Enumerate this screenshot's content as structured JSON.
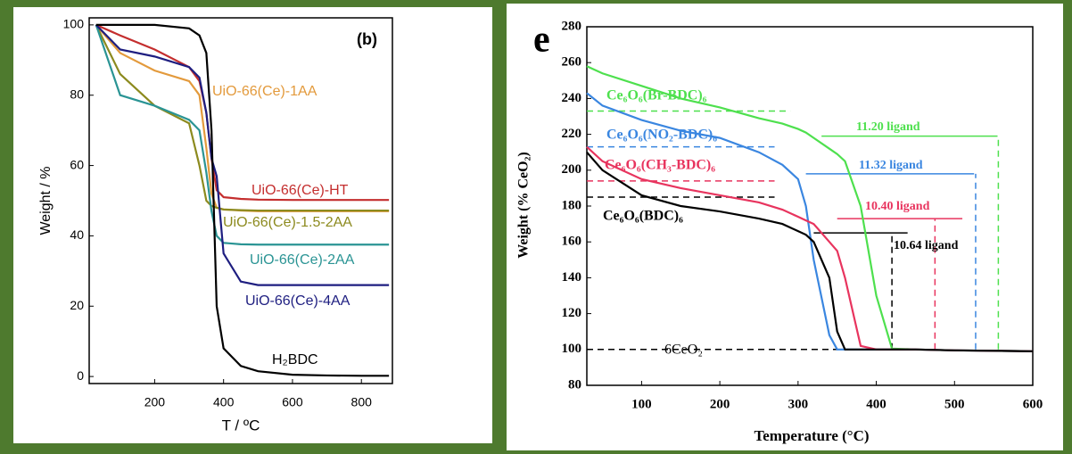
{
  "chart_data": [
    {
      "type": "line",
      "annotations": [
        "(b)"
      ],
      "xlabel": "T / ºC",
      "ylabel": "Weight / %",
      "xlim": [
        10,
        890
      ],
      "ylim": [
        -2,
        102
      ],
      "xticks": [
        200,
        400,
        600,
        800
      ],
      "yticks": [
        0,
        20,
        40,
        60,
        80,
        100
      ],
      "x": [
        30,
        100,
        200,
        300,
        330,
        350,
        365,
        380,
        400,
        450,
        500,
        600,
        700,
        800,
        880
      ],
      "series": [
        {
          "name": "UiO-66(Ce)-1AA",
          "color": "#e39a3c",
          "values": [
            100,
            92,
            87,
            84,
            80,
            65,
            52,
            48,
            47.5,
            47.2,
            47,
            47,
            47,
            47,
            47
          ]
        },
        {
          "name": "UiO-66(Ce)-HT",
          "color": "#c42e2e",
          "values": [
            100,
            97,
            93,
            88,
            84,
            75,
            62,
            53,
            51,
            50.5,
            50.3,
            50.2,
            50.2,
            50.2,
            50.2
          ]
        },
        {
          "name": "UiO-66(Ce)-1.5-2AA",
          "color": "#8c8a1e",
          "values": [
            100,
            86,
            77,
            72,
            60,
            50,
            48.5,
            48,
            47.5,
            47.3,
            47.2,
            47.2,
            47.2,
            47.2,
            47.2
          ]
        },
        {
          "name": "UiO-66(Ce)-2AA",
          "color": "#2a9494",
          "values": [
            100,
            80,
            77,
            73,
            70,
            58,
            47,
            40,
            38,
            37.6,
            37.5,
            37.5,
            37.5,
            37.5,
            37.5
          ]
        },
        {
          "name": "UiO-66(Ce)-4AA",
          "color": "#1e1e80",
          "values": [
            100,
            93,
            91,
            88,
            85,
            75,
            62,
            57,
            35,
            27,
            26,
            26,
            26,
            26,
            26
          ]
        },
        {
          "name": "H₂BDC",
          "color": "#000000",
          "values": [
            100,
            100,
            100,
            99,
            97,
            92,
            70,
            20,
            8,
            3,
            1.5,
            0.5,
            0.3,
            0.2,
            0.2
          ]
        }
      ]
    },
    {
      "type": "line",
      "annotations": [
        "e",
        "11.20 ligand",
        "11.32 ligand",
        "10.40 ligand",
        "10.64 ligand",
        "6CeO₂"
      ],
      "xlabel": "Temperature (°C)",
      "ylabel": "Weight (% CeO₂)",
      "xlim": [
        30,
        600
      ],
      "ylim": [
        80,
        280
      ],
      "xticks": [
        100,
        200,
        300,
        400,
        500,
        600
      ],
      "yticks": [
        80,
        100,
        120,
        140,
        160,
        180,
        200,
        220,
        240,
        260,
        280
      ],
      "x": [
        30,
        50,
        100,
        150,
        200,
        250,
        280,
        300,
        310,
        320,
        340,
        350,
        360,
        380,
        400,
        420,
        450,
        500,
        600
      ],
      "series": [
        {
          "name": "Ce₆O₆(Br-BDC)₆",
          "color": "#4ee04e",
          "values": [
            258,
            254,
            247,
            240,
            235,
            229,
            226,
            223,
            221,
            218,
            212,
            209,
            205,
            180,
            130,
            100.5,
            100,
            99.5,
            99
          ]
        },
        {
          "name": "Ce₆O₆(NO₂-BDC)₆",
          "color": "#3a86e0",
          "values": [
            243,
            236,
            228,
            222,
            218,
            210,
            203,
            195,
            180,
            150,
            108,
            100,
            100,
            100,
            100,
            100,
            100,
            99.5,
            99
          ]
        },
        {
          "name": "Ce₆O₆(CH₃-BDC)₆",
          "color": "#e8345e",
          "values": [
            213,
            205,
            195,
            190,
            186,
            182,
            178,
            174,
            172,
            170,
            160,
            155,
            140,
            102,
            100,
            100,
            100,
            99.5,
            99
          ]
        },
        {
          "name": "Ce₆O₆(BDC)₆",
          "color": "#000000",
          "values": [
            210,
            200,
            186,
            180,
            177,
            173,
            170,
            166,
            164,
            160,
            140,
            110,
            100,
            100,
            100,
            100,
            100,
            99.5,
            99
          ]
        }
      ],
      "reference_lines": [
        {
          "x": [
            30,
            290
          ],
          "y": [
            233,
            233
          ],
          "color": "#4ee04e",
          "dash": true
        },
        {
          "x": [
            30,
            270
          ],
          "y": [
            213,
            213
          ],
          "color": "#3a86e0",
          "dash": true
        },
        {
          "x": [
            30,
            270
          ],
          "y": [
            194,
            194
          ],
          "color": "#e8345e",
          "dash": true
        },
        {
          "x": [
            30,
            270
          ],
          "y": [
            185,
            185
          ],
          "color": "#000000",
          "dash": true
        },
        {
          "x": [
            30,
            440
          ],
          "y": [
            100,
            100
          ],
          "color": "#000000",
          "dash": true
        },
        {
          "x": [
            330,
            555
          ],
          "y": [
            219,
            219
          ],
          "color": "#4ee04e",
          "dash": false
        },
        {
          "x": [
            556,
            556
          ],
          "y": [
            100,
            219
          ],
          "color": "#4ee04e",
          "dash": true
        },
        {
          "x": [
            310,
            525
          ],
          "y": [
            198,
            198
          ],
          "color": "#3a86e0",
          "dash": false
        },
        {
          "x": [
            527,
            527
          ],
          "y": [
            100,
            198
          ],
          "color": "#3a86e0",
          "dash": true
        },
        {
          "x": [
            350,
            510
          ],
          "y": [
            173,
            173
          ],
          "color": "#e8345e",
          "dash": false
        },
        {
          "x": [
            475,
            475
          ],
          "y": [
            100,
            173
          ],
          "color": "#e8345e",
          "dash": true
        },
        {
          "x": [
            320,
            440
          ],
          "y": [
            165,
            165
          ],
          "color": "#000000",
          "dash": false
        },
        {
          "x": [
            420,
            420
          ],
          "y": [
            100,
            165
          ],
          "color": "#000000",
          "dash": true
        }
      ]
    }
  ]
}
